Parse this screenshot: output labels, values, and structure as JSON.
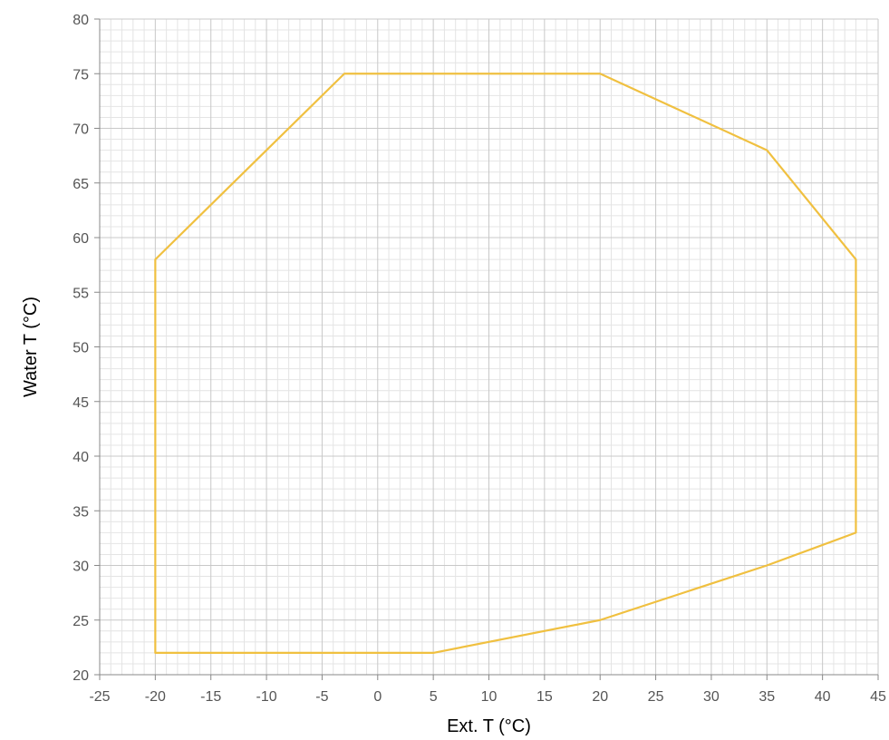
{
  "chart_data": {
    "type": "line",
    "title": "",
    "xlabel": "Ext. T (°C)",
    "ylabel": "Water T (°C)",
    "xlim": [
      -25,
      45
    ],
    "ylim": [
      20,
      80
    ],
    "x_ticks": [
      -25,
      -20,
      -15,
      -10,
      -5,
      0,
      5,
      10,
      15,
      20,
      25,
      30,
      35,
      40,
      45
    ],
    "y_ticks": [
      20,
      25,
      30,
      35,
      40,
      45,
      50,
      55,
      60,
      65,
      70,
      75,
      80
    ],
    "grid": true,
    "minor_grid_step": 1,
    "series": [
      {
        "color": "#f0c040",
        "closed": true,
        "points": [
          [
            -20,
            22
          ],
          [
            5,
            22
          ],
          [
            20,
            25
          ],
          [
            35,
            30
          ],
          [
            43,
            33
          ],
          [
            43,
            58
          ],
          [
            35,
            68
          ],
          [
            20,
            75
          ],
          [
            -3,
            75
          ],
          [
            -20,
            58
          ]
        ]
      }
    ]
  }
}
